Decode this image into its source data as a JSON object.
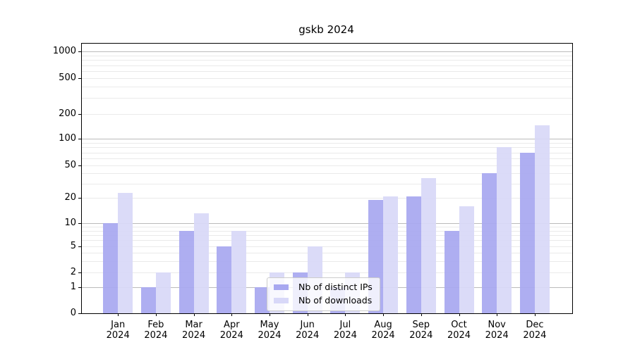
{
  "title": "gskb 2024",
  "legend": {
    "items": [
      {
        "label": "Nb of distinct IPs",
        "color": "#a8a8f0"
      },
      {
        "label": "Nb of downloads",
        "color": "#d8d8f8"
      }
    ]
  },
  "chart_data": {
    "type": "bar",
    "title": "gskb 2024",
    "categories": [
      "Jan",
      "Feb",
      "Mar",
      "Apr",
      "May",
      "Jun",
      "Jul",
      "Aug",
      "Sep",
      "Oct",
      "Nov",
      "Dec"
    ],
    "year": "2024",
    "series": [
      {
        "name": "Nb of distinct IPs",
        "color": "#a8a8f0",
        "values": [
          10,
          1,
          8,
          5,
          1,
          2,
          1,
          19,
          21,
          8,
          40,
          70
        ]
      },
      {
        "name": "Nb of downloads",
        "color": "#d8d8f8",
        "values": [
          23,
          2,
          13,
          8,
          2,
          5,
          2,
          21,
          35,
          16,
          80,
          145
        ]
      }
    ],
    "yscale": "symlog",
    "yticks": [
      0,
      1,
      2,
      5,
      10,
      20,
      50,
      100,
      200,
      500,
      1000
    ],
    "ylim": [
      0,
      1400
    ],
    "grid": true,
    "legend_position": "inside-bottom-center"
  }
}
